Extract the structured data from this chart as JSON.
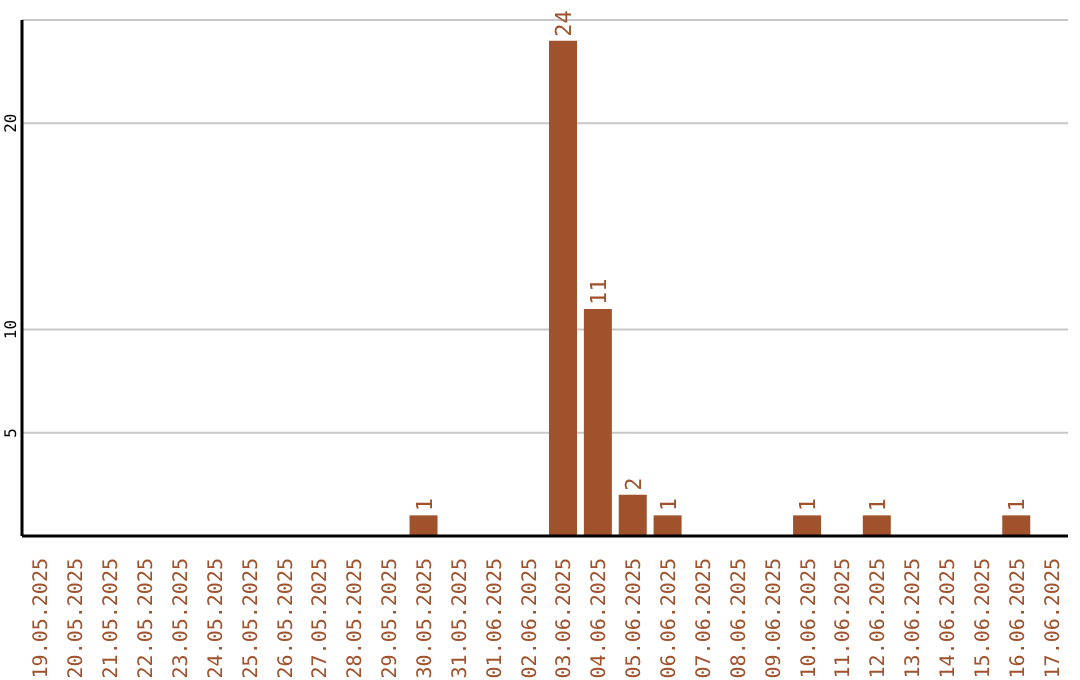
{
  "chart_data": {
    "type": "bar",
    "categories": [
      "19.05.2025",
      "20.05.2025",
      "21.05.2025",
      "22.05.2025",
      "23.05.2025",
      "24.05.2025",
      "25.05.2025",
      "26.05.2025",
      "27.05.2025",
      "28.05.2025",
      "29.05.2025",
      "30.05.2025",
      "31.05.2025",
      "01.06.2025",
      "02.06.2025",
      "03.06.2025",
      "04.06.2025",
      "05.06.2025",
      "06.06.2025",
      "07.06.2025",
      "08.06.2025",
      "09.06.2025",
      "10.06.2025",
      "11.06.2025",
      "12.06.2025",
      "13.06.2025",
      "14.06.2025",
      "15.06.2025",
      "16.06.2025",
      "17.06.2025"
    ],
    "values": [
      0,
      0,
      0,
      0,
      0,
      0,
      0,
      0,
      0,
      0,
      0,
      1,
      0,
      0,
      0,
      24,
      11,
      2,
      1,
      0,
      0,
      0,
      1,
      0,
      1,
      0,
      0,
      0,
      1,
      0
    ],
    "value_labels": [
      null,
      null,
      null,
      null,
      null,
      null,
      null,
      null,
      null,
      null,
      null,
      "1",
      null,
      null,
      null,
      "24",
      "11",
      "2",
      "1",
      null,
      null,
      null,
      "1",
      null,
      "1",
      null,
      null,
      null,
      "1",
      null
    ],
    "color": "#a0522d",
    "ylim": [
      0,
      25
    ],
    "yticks": [
      5,
      10,
      20
    ],
    "grid": "y"
  }
}
